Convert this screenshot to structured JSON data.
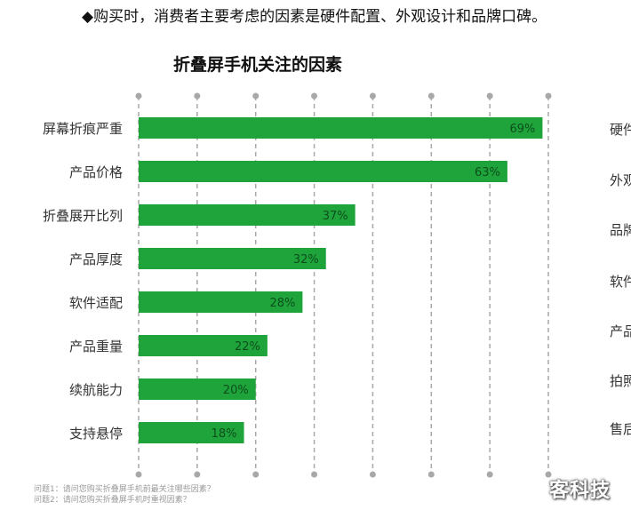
{
  "headline": "◆购买时，消费者主要考虑的因素是硬件配置、外观设计和品牌口碑。",
  "chart_data": {
    "type": "bar",
    "orientation": "horizontal",
    "title": "折叠屏手机关注的因素",
    "categories": [
      "屏幕折痕严重",
      "产品价格",
      "折叠展开比列",
      "产品厚度",
      "软件适配",
      "产品重量",
      "续航能力",
      "支持悬停"
    ],
    "values": [
      69,
      63,
      37,
      32,
      28,
      22,
      20,
      18
    ],
    "value_labels": [
      "69%",
      "63%",
      "37%",
      "32%",
      "28%",
      "22%",
      "20%",
      "18%"
    ],
    "xlim": [
      0,
      70
    ],
    "grid": true,
    "bar_color": "#1fa33b",
    "grid_color": "#a8a8a8"
  },
  "right_labels": [
    "硬件",
    "外观",
    "品牌",
    "软件",
    "产品",
    "拍照",
    "售后"
  ],
  "notes": [
    "问题1：请问您购买折叠屏手机前最关注哪些因素？",
    "问题2：请问您购买折叠屏手机时重视因素？"
  ],
  "watermark": "客科技"
}
